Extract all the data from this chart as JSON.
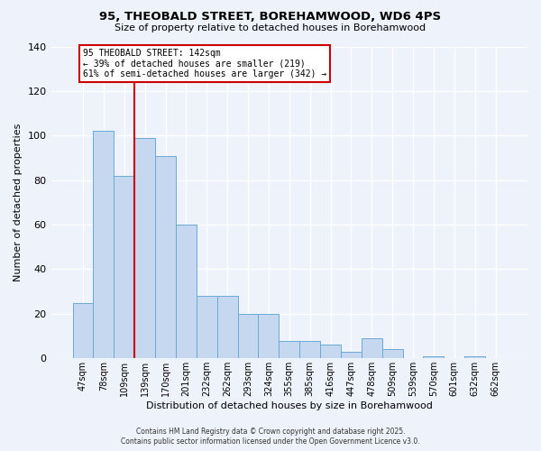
{
  "title1": "95, THEOBALD STREET, BOREHAMWOOD, WD6 4PS",
  "title2": "Size of property relative to detached houses in Borehamwood",
  "xlabel": "Distribution of detached houses by size in Borehamwood",
  "ylabel": "Number of detached properties",
  "categories": [
    "47sqm",
    "78sqm",
    "109sqm",
    "139sqm",
    "170sqm",
    "201sqm",
    "232sqm",
    "262sqm",
    "293sqm",
    "324sqm",
    "355sqm",
    "385sqm",
    "416sqm",
    "447sqm",
    "478sqm",
    "509sqm",
    "539sqm",
    "570sqm",
    "601sqm",
    "632sqm",
    "662sqm"
  ],
  "values": [
    25,
    102,
    82,
    99,
    91,
    60,
    28,
    28,
    20,
    20,
    8,
    8,
    6,
    3,
    9,
    4,
    0,
    1,
    0,
    1,
    0
  ],
  "bar_color": "#c5d8f0",
  "bar_edge_color": "#6aaad4",
  "vline_color": "#cc0000",
  "vline_x_index": 3,
  "annotation_title": "95 THEOBALD STREET: 142sqm",
  "annotation_line1": "← 39% of detached houses are smaller (219)",
  "annotation_line2": "61% of semi-detached houses are larger (342) →",
  "annotation_box_color": "#ffffff",
  "annotation_box_edge_color": "#cc0000",
  "footer1": "Contains HM Land Registry data © Crown copyright and database right 2025.",
  "footer2": "Contains public sector information licensed under the Open Government Licence v3.0.",
  "background_color": "#eef2fa",
  "ylim": [
    0,
    140
  ],
  "yticks": [
    0,
    20,
    40,
    60,
    80,
    100,
    120,
    140
  ]
}
